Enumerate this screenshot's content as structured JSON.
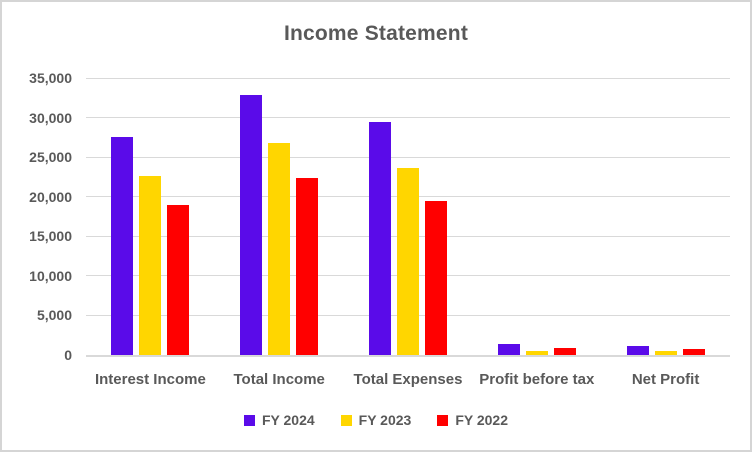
{
  "window": {
    "background": "#FFFFFF",
    "frame_border_color": "#D5D5D5"
  },
  "chart_data": {
    "type": "bar",
    "title": "Income Statement",
    "categories": [
      "Interest Income",
      "Total Income",
      "Total Expenses",
      "Profit before tax",
      "Net Profit"
    ],
    "series": [
      {
        "name": "FY 2024",
        "color": "#5A0BE9",
        "values": [
          27500,
          32900,
          29500,
          1450,
          1200
        ]
      },
      {
        "name": "FY 2023",
        "color": "#FFD600",
        "values": [
          22600,
          26800,
          23600,
          550,
          550
        ]
      },
      {
        "name": "FY 2022",
        "color": "#FF0000",
        "values": [
          19000,
          22400,
          19500,
          850,
          800
        ]
      }
    ],
    "xlabel": "",
    "ylabel": "",
    "ylim": [
      0,
      35000
    ],
    "y_tick_step": 5000,
    "y_ticks": [
      "35,000",
      "30,000",
      "25,000",
      "20,000",
      "15,000",
      "10,000",
      "5,000",
      "0"
    ],
    "grid": true,
    "legend_position": "bottom",
    "text_color": "#595959",
    "gridline_color": "#D9D9D9",
    "axis_line_color": "#D9D9D9"
  }
}
